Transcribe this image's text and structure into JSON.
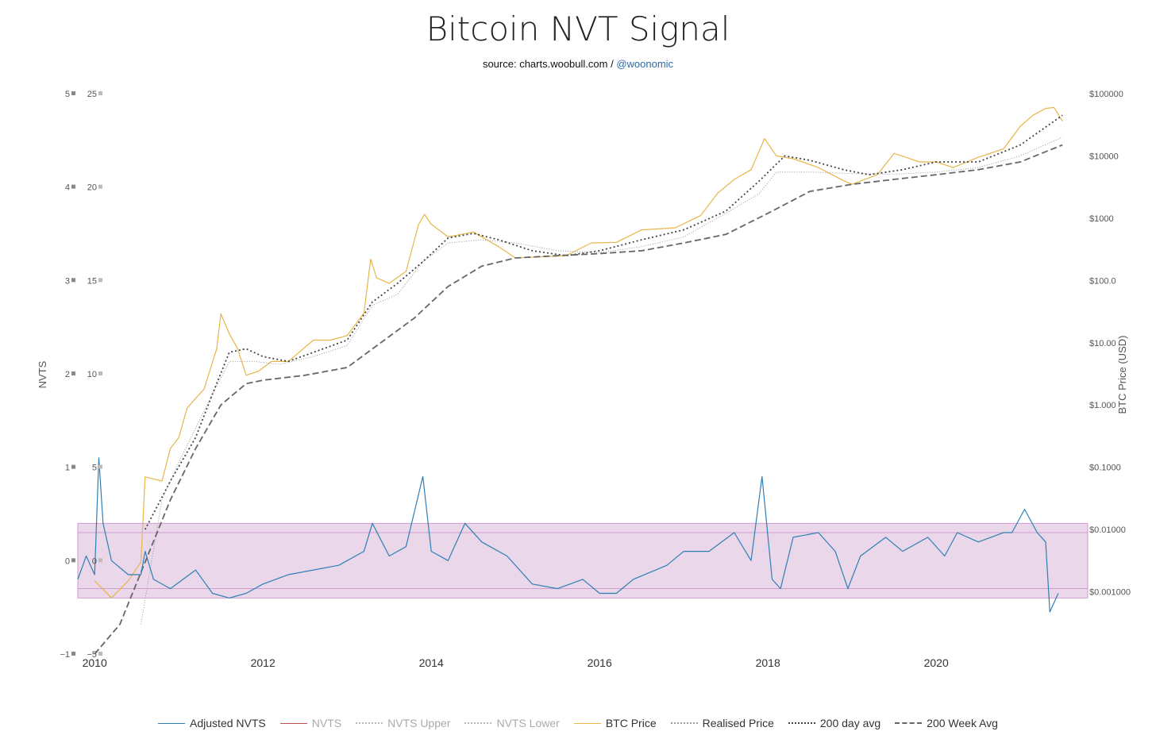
{
  "header": {
    "title": "Bitcoin NVT Signal",
    "source_prefix": "source: charts.woobull.com / ",
    "source_handle": "@woonomic"
  },
  "colors": {
    "adjusted_nvts": "#2f7fb5",
    "nvts": "#c0504d",
    "nvts_upper": "#bbbbbb",
    "nvts_lower": "#bbbbbb",
    "btc_price": "#e8b54a",
    "realised_price": "#999999",
    "avg_200d": "#444444",
    "avg_200w": "#666666",
    "band_fill": "#ead7ea",
    "band_line": "#c68bc6"
  },
  "legend": [
    {
      "label": "Adjusted NVTS",
      "color": "#2f7fb5",
      "dash": "solid",
      "faded": false
    },
    {
      "label": "NVTS",
      "color": "#c0504d",
      "dash": "solid",
      "faded": true
    },
    {
      "label": "NVTS Upper",
      "color": "#bbbbbb",
      "dash": "dotted",
      "faded": true
    },
    {
      "label": "NVTS Lower",
      "color": "#bbbbbb",
      "dash": "dotted",
      "faded": true
    },
    {
      "label": "BTC Price",
      "color": "#e8b54a",
      "dash": "solid",
      "faded": false
    },
    {
      "label": "Realised Price",
      "color": "#999999",
      "dash": "dotted",
      "faded": false
    },
    {
      "label": "200 day avg",
      "color": "#444444",
      "dash": "dotted",
      "faded": false
    },
    {
      "label": "200 Week Avg",
      "color": "#666666",
      "dash": "dashed",
      "faded": false
    }
  ],
  "chart_data": {
    "type": "line",
    "title": "Bitcoin NVT Signal",
    "x_ticks": [
      "2010",
      "2012",
      "2014",
      "2016",
      "2018",
      "2020"
    ],
    "xlim": [
      2009.8,
      2021.8
    ],
    "y_left_outer": {
      "title": "NVTS",
      "ticks": [
        "−1",
        "0",
        "1",
        "2",
        "3",
        "4",
        "5"
      ],
      "range": [
        -1,
        5
      ]
    },
    "y_left_inner": {
      "ticks": [
        "−5",
        "0",
        "5",
        "10",
        "15",
        "20",
        "25"
      ],
      "range": [
        -5,
        25
      ]
    },
    "y_right": {
      "title": "BTC Price (USD)",
      "scale": "log",
      "ticks": [
        "$0.001000",
        "$0.01000",
        "$0.1000",
        "$1.000",
        "$10.00",
        "$100.0",
        "$1000",
        "$10000",
        "$100000"
      ],
      "range": [
        0.0001,
        100000
      ]
    },
    "band": {
      "outer": [
        -0.4,
        0.4
      ],
      "inner": [
        -0.3,
        0.3
      ]
    },
    "series": [
      {
        "name": "BTC Price",
        "key": "btc",
        "x": [
          2010.0,
          2010.2,
          2010.4,
          2010.55,
          2010.6,
          2010.8,
          2010.9,
          2011.0,
          2011.1,
          2011.3,
          2011.45,
          2011.5,
          2011.6,
          2011.7,
          2011.8,
          2011.95,
          2012.1,
          2012.3,
          2012.6,
          2012.8,
          2013.0,
          2013.2,
          2013.28,
          2013.35,
          2013.5,
          2013.7,
          2013.85,
          2013.92,
          2014.0,
          2014.2,
          2014.5,
          2014.8,
          2015.0,
          2015.3,
          2015.6,
          2015.9,
          2016.2,
          2016.5,
          2016.9,
          2017.2,
          2017.4,
          2017.6,
          2017.8,
          2017.96,
          2018.1,
          2018.3,
          2018.6,
          2018.9,
          2019.0,
          2019.3,
          2019.5,
          2019.8,
          2020.0,
          2020.2,
          2020.5,
          2020.8,
          2021.0,
          2021.15,
          2021.3,
          2021.4,
          2021.5
        ],
        "y": [
          0.0015,
          0.0008,
          0.0015,
          0.003,
          0.07,
          0.06,
          0.2,
          0.3,
          0.9,
          1.8,
          8,
          29,
          14,
          8,
          3,
          3.5,
          5,
          5,
          11,
          11,
          13,
          30,
          220,
          110,
          90,
          140,
          800,
          1150,
          800,
          500,
          600,
          350,
          230,
          240,
          250,
          400,
          410,
          650,
          700,
          1100,
          2500,
          4200,
          6000,
          19000,
          10000,
          9000,
          6500,
          4000,
          3500,
          5000,
          11000,
          8000,
          8000,
          6500,
          9500,
          13000,
          30000,
          45000,
          58000,
          60000,
          36000
        ]
      },
      {
        "name": "Realised Price",
        "key": "realised",
        "x": [
          2010.55,
          2010.8,
          2011.0,
          2011.3,
          2011.6,
          2011.9,
          2012.2,
          2012.6,
          2013.0,
          2013.3,
          2013.6,
          2013.9,
          2014.2,
          2014.6,
          2015.0,
          2015.5,
          2016.0,
          2016.5,
          2017.0,
          2017.5,
          2017.9,
          2018.1,
          2018.5,
          2019.0,
          2019.5,
          2020.0,
          2020.5,
          2021.0,
          2021.5
        ],
        "y": [
          0.0003,
          0.03,
          0.12,
          0.8,
          5,
          5,
          4.5,
          6,
          9,
          40,
          60,
          200,
          400,
          450,
          400,
          300,
          280,
          350,
          500,
          1200,
          2500,
          5500,
          5500,
          5200,
          5100,
          5500,
          6500,
          10000,
          20000
        ]
      },
      {
        "name": "200 day avg",
        "key": "d200",
        "x": [
          2010.6,
          2010.9,
          2011.2,
          2011.4,
          2011.6,
          2011.8,
          2012.0,
          2012.3,
          2012.6,
          2013.0,
          2013.3,
          2013.6,
          2013.9,
          2014.2,
          2014.5,
          2014.8,
          2015.2,
          2015.6,
          2016.0,
          2016.5,
          2017.0,
          2017.5,
          2017.9,
          2018.2,
          2018.5,
          2018.9,
          2019.2,
          2019.6,
          2020.0,
          2020.5,
          2021.0,
          2021.5
        ],
        "y": [
          0.01,
          0.06,
          0.3,
          1.5,
          7,
          8,
          6,
          5,
          7,
          11,
          45,
          90,
          200,
          480,
          570,
          450,
          300,
          250,
          300,
          450,
          650,
          1300,
          4000,
          10000,
          8500,
          6000,
          5000,
          6000,
          8000,
          8000,
          15000,
          45000
        ]
      },
      {
        "name": "200 Week Avg",
        "key": "w200",
        "x": [
          2010.0,
          2010.3,
          2010.6,
          2010.9,
          2011.2,
          2011.5,
          2011.8,
          2012.0,
          2012.5,
          2013.0,
          2013.4,
          2013.8,
          2014.2,
          2014.6,
          2015.0,
          2015.5,
          2016.0,
          2016.5,
          2017.0,
          2017.5,
          2018.0,
          2018.5,
          2019.0,
          2019.5,
          2020.0,
          2020.5,
          2021.0,
          2021.5
        ],
        "y": [
          0.0001,
          0.0003,
          0.003,
          0.03,
          0.2,
          1.0,
          2.2,
          2.5,
          3,
          4,
          10,
          25,
          80,
          170,
          230,
          250,
          270,
          300,
          400,
          550,
          1200,
          2700,
          3500,
          4200,
          5000,
          6000,
          8000,
          15000
        ]
      },
      {
        "name": "Adjusted NVTS",
        "key": "nvts",
        "x": [
          2009.8,
          2009.9,
          2010.0,
          2010.05,
          2010.1,
          2010.2,
          2010.4,
          2010.55,
          2010.6,
          2010.7,
          2010.9,
          2011.2,
          2011.4,
          2011.6,
          2011.8,
          2012.0,
          2012.3,
          2012.6,
          2012.9,
          2013.2,
          2013.3,
          2013.5,
          2013.7,
          2013.9,
          2014.0,
          2014.2,
          2014.4,
          2014.6,
          2014.9,
          2015.2,
          2015.5,
          2015.8,
          2016.0,
          2016.2,
          2016.4,
          2016.8,
          2017.0,
          2017.3,
          2017.6,
          2017.8,
          2017.93,
          2018.05,
          2018.15,
          2018.3,
          2018.6,
          2018.8,
          2018.95,
          2019.1,
          2019.4,
          2019.6,
          2019.9,
          2020.1,
          2020.25,
          2020.5,
          2020.8,
          2020.9,
          2021.05,
          2021.2,
          2021.3,
          2021.35,
          2021.45
        ],
        "y": [
          -0.2,
          0.05,
          -0.15,
          1.1,
          0.4,
          0.0,
          -0.15,
          -0.15,
          0.1,
          -0.2,
          -0.3,
          -0.1,
          -0.35,
          -0.4,
          -0.35,
          -0.25,
          -0.15,
          -0.1,
          -0.05,
          0.1,
          0.4,
          0.05,
          0.15,
          0.9,
          0.1,
          0.0,
          0.4,
          0.2,
          0.05,
          -0.25,
          -0.3,
          -0.2,
          -0.35,
          -0.35,
          -0.2,
          -0.05,
          0.1,
          0.1,
          0.3,
          0.0,
          0.9,
          -0.2,
          -0.3,
          0.25,
          0.3,
          0.1,
          -0.3,
          0.05,
          0.25,
          0.1,
          0.25,
          0.05,
          0.3,
          0.2,
          0.3,
          0.3,
          0.55,
          0.3,
          0.2,
          -0.55,
          -0.35
        ]
      }
    ]
  }
}
